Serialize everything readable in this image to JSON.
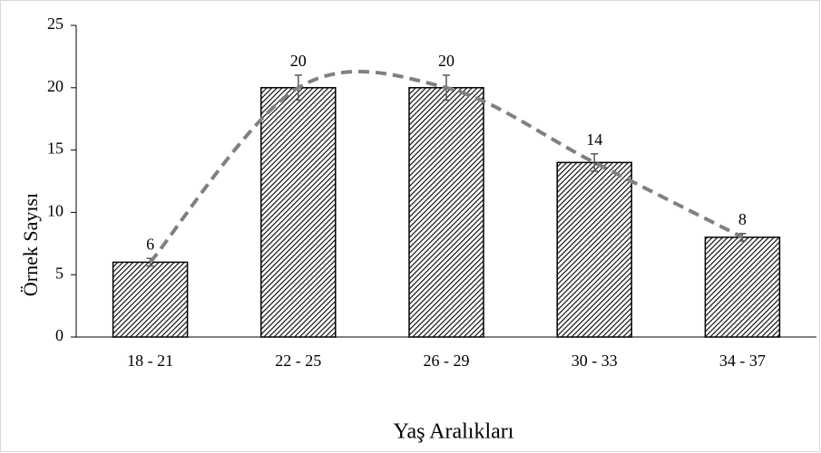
{
  "chart_data": {
    "type": "bar",
    "xlabel": "Yaş Aralıkları",
    "ylabel": "Örnek Sayısı",
    "categories": [
      "18 - 21",
      "22 - 25",
      "26 - 29",
      "30 - 33",
      "34 - 37"
    ],
    "values": [
      6,
      20,
      20,
      14,
      8
    ],
    "errors": [
      0.3,
      1,
      1,
      0.7,
      0.3
    ],
    "color": "#000000",
    "pattern": "hatch",
    "trendline": {
      "color": "#808080",
      "dashed": true,
      "smooth": true
    },
    "ylim": [
      0,
      25
    ],
    "yticks": [
      0,
      5,
      10,
      15,
      20,
      25
    ],
    "grid": false
  }
}
